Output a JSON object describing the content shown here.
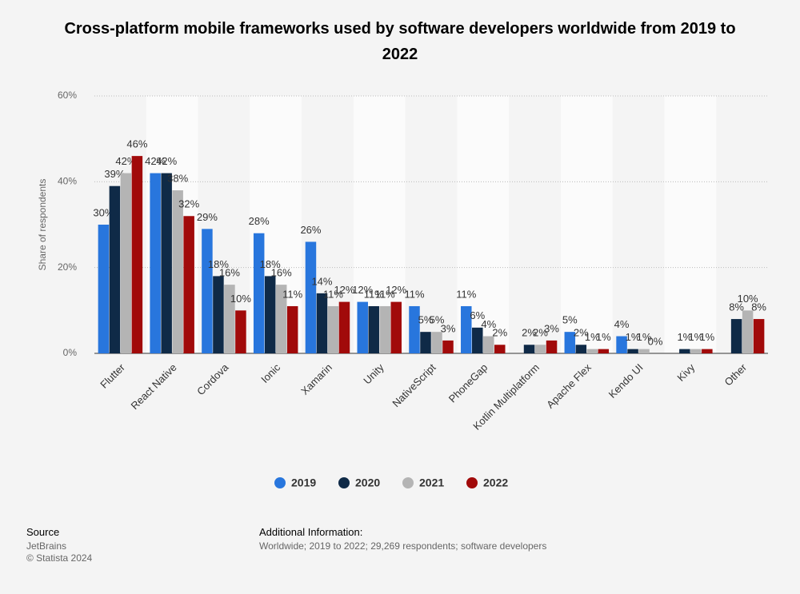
{
  "chart_data": {
    "type": "bar",
    "title": "Cross-platform mobile frameworks used by software developers worldwide from 2019 to 2022",
    "y_label": "Share of respondents",
    "categories": [
      "Flutter",
      "React Native",
      "Cordova",
      "Ionic",
      "Xamarin",
      "Unity",
      "NativeScript",
      "PhoneGap",
      "Kotlin Multiplatform",
      "Apache Flex",
      "Kendo UI",
      "Kivy",
      "Other"
    ],
    "series": [
      {
        "name": "2019",
        "color": "#2876dd",
        "values": [
          30,
          42,
          29,
          28,
          26,
          12,
          11,
          11,
          null,
          5,
          4,
          null,
          null
        ],
        "value_labels": [
          "30%",
          "42%",
          "29%",
          "28%",
          "26%",
          "12%",
          "11%",
          "11%",
          null,
          "5%",
          "4%",
          null,
          null
        ]
      },
      {
        "name": "2020",
        "color": "#0f2a47",
        "values": [
          39,
          42,
          18,
          18,
          14,
          11,
          5,
          6,
          2,
          2,
          1,
          1,
          8
        ],
        "value_labels": [
          "39%",
          "42%",
          "18%",
          "18%",
          "14%",
          "11%",
          "5%",
          "6%",
          "2%",
          "2%",
          "1%",
          "1%",
          "8%"
        ]
      },
      {
        "name": "2021",
        "color": "#b4b4b4",
        "values": [
          42,
          38,
          16,
          16,
          11,
          11,
          5,
          4,
          2,
          1,
          1,
          1,
          10
        ],
        "value_labels": [
          "42%",
          "38%",
          "16%",
          "16%",
          "11%",
          "11%",
          "5%",
          "4%",
          "2%",
          "1%",
          "1%",
          "1%",
          "10%"
        ]
      },
      {
        "name": "2022",
        "color": "#a10a0a",
        "values": [
          46,
          32,
          10,
          11,
          12,
          12,
          3,
          2,
          3,
          1,
          0,
          1,
          8
        ],
        "value_labels": [
          "46%",
          "32%",
          "10%",
          "11%",
          "12%",
          "12%",
          "3%",
          "2%",
          "3%",
          "1%",
          "0%",
          "1%",
          "8%"
        ]
      }
    ],
    "ylim": [
      0,
      60
    ],
    "yticks": [
      {
        "value": 0,
        "label": "0%"
      },
      {
        "value": 20,
        "label": "20%"
      },
      {
        "value": 40,
        "label": "40%"
      },
      {
        "value": 60,
        "label": "60%"
      }
    ],
    "grid": true
  },
  "footer": {
    "source_heading": "Source",
    "source": "JetBrains",
    "copyright": "© Statista 2024",
    "info_heading": "Additional Information:",
    "info": "Worldwide; 2019 to 2022; 29,269 respondents; software developers"
  }
}
